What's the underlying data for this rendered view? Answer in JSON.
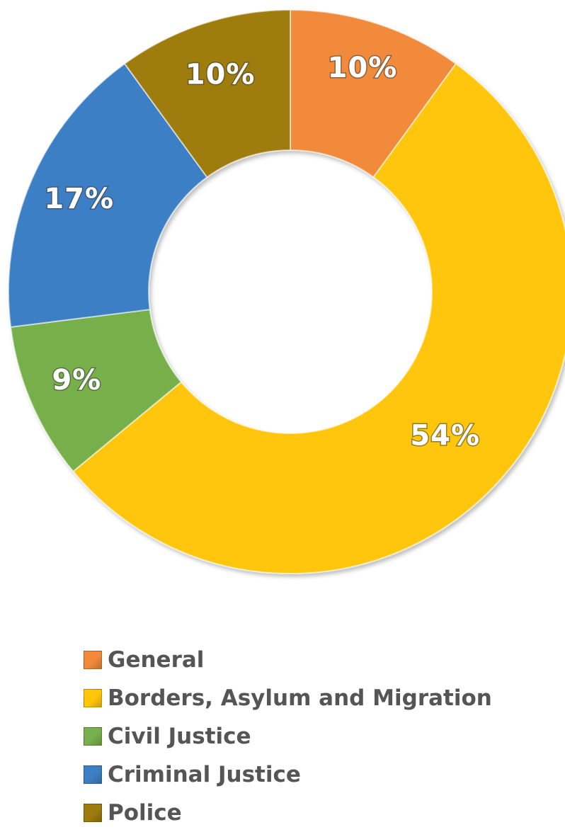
{
  "chart_data": {
    "type": "pie",
    "style": "donut",
    "slices": [
      {
        "name": "General",
        "value": 10,
        "label": "10%",
        "color": "#f28a3a"
      },
      {
        "name": "Borders, Asylum and Migration",
        "value": 54,
        "label": "54%",
        "color": "#ffc60a"
      },
      {
        "name": "Civil Justice",
        "value": 9,
        "label": "9%",
        "color": "#77b04c"
      },
      {
        "name": "Criminal Justice",
        "value": 17,
        "label": "17%",
        "color": "#3d7fc4"
      },
      {
        "name": "Police",
        "value": 10,
        "label": "10%",
        "color": "#9e7b0f"
      }
    ],
    "legend_position": "bottom-left"
  }
}
